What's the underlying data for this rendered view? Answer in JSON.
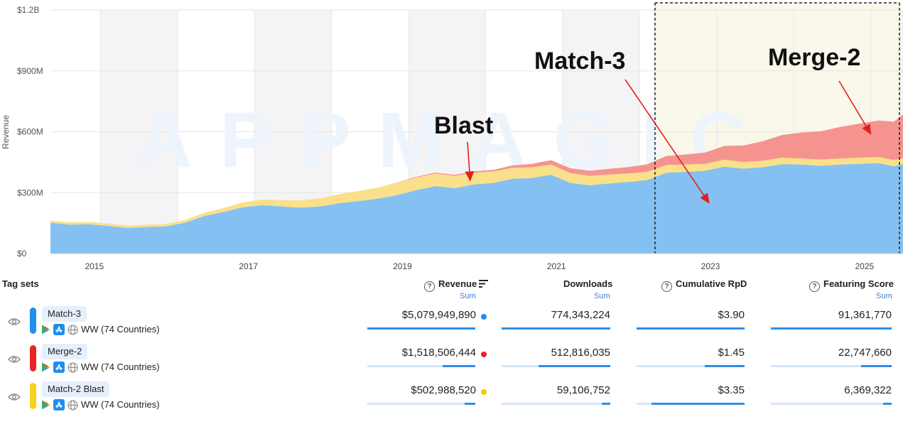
{
  "chart_data": {
    "type": "area",
    "ylabel": "Revenue",
    "ylim": [
      0,
      1200
    ],
    "y_tick_labels": [
      "$0",
      "$300M",
      "$600M",
      "$900M",
      "$1.2B"
    ],
    "y_ticks": [
      0,
      300,
      600,
      900,
      1200
    ],
    "x_range": [
      2014.35,
      2025.42
    ],
    "x_tick_labels": [
      "2015",
      "2017",
      "2019",
      "2021",
      "2023",
      "2025"
    ],
    "x_ticks": [
      2015,
      2017,
      2019,
      2021,
      2023,
      2025
    ],
    "highlight_from": 2022.2,
    "annotations": [
      {
        "text": "Blast",
        "target_x": 2019.8,
        "target_y": 360
      },
      {
        "text": "Match-3",
        "target_x": 2022.9,
        "target_y": 250
      },
      {
        "text": "Merge-2",
        "target_x": 2025.0,
        "target_y": 590
      }
    ],
    "x": [
      2014.35,
      2014.6,
      2014.85,
      2015.1,
      2015.35,
      2015.6,
      2015.85,
      2016.1,
      2016.35,
      2016.6,
      2016.85,
      2017.1,
      2017.35,
      2017.6,
      2017.85,
      2018.1,
      2018.35,
      2018.6,
      2018.85,
      2019.1,
      2019.35,
      2019.6,
      2019.85,
      2020.1,
      2020.35,
      2020.6,
      2020.85,
      2021.1,
      2021.35,
      2021.6,
      2021.85,
      2022.1,
      2022.35,
      2022.6,
      2022.85,
      2023.1,
      2023.35,
      2023.6,
      2023.85,
      2024.1,
      2024.35,
      2024.6,
      2024.85,
      2025.1,
      2025.3,
      2025.42
    ],
    "series": [
      {
        "name": "Match-3",
        "color": "#84c1f2",
        "values": [
          152,
          142,
          144,
          136,
          126,
          130,
          134,
          152,
          185,
          205,
          228,
          238,
          232,
          226,
          232,
          248,
          258,
          270,
          288,
          312,
          332,
          322,
          340,
          348,
          368,
          372,
          388,
          348,
          336,
          345,
          352,
          362,
          398,
          402,
          408,
          428,
          418,
          425,
          440,
          438,
          432,
          438,
          442,
          445,
          430,
          440
        ]
      },
      {
        "name": "Merge-2",
        "color": "#f5948e",
        "values": [
          0,
          0,
          0,
          0,
          0,
          0,
          0,
          0,
          0,
          0,
          0,
          0,
          0,
          0,
          0,
          0,
          0,
          0,
          2,
          4,
          5,
          6,
          7,
          8,
          12,
          18,
          22,
          24,
          26,
          28,
          32,
          38,
          45,
          50,
          56,
          68,
          82,
          96,
          112,
          128,
          140,
          155,
          168,
          180,
          190,
          215
        ]
      },
      {
        "name": "Match-2 Blast",
        "color": "#fbe08a",
        "values": [
          10,
          12,
          12,
          12,
          12,
          12,
          12,
          14,
          16,
          20,
          24,
          28,
          32,
          36,
          40,
          45,
          50,
          55,
          60,
          62,
          62,
          60,
          58,
          56,
          54,
          52,
          50,
          48,
          46,
          44,
          42,
          40,
          38,
          36,
          34,
          34,
          32,
          32,
          32,
          30,
          30,
          30,
          30,
          30,
          30,
          30
        ]
      }
    ]
  },
  "table": {
    "tag_sets_label": "Tag sets",
    "columns": [
      {
        "label": "Revenue",
        "sublabel": "Sum",
        "help": "?"
      },
      {
        "label": "Downloads",
        "sublabel": "Sum"
      },
      {
        "label": "Cumulative RpD",
        "help": "?"
      },
      {
        "label": "Featuring Score",
        "sublabel": "Sum",
        "help": "?"
      }
    ],
    "rows": [
      {
        "name": "Match-3",
        "region": "WW (74 Countries)",
        "color": "#1f8ef0",
        "dot": "#1f8ef0",
        "revenue": "$5,079,949,890",
        "downloads": "774,343,224",
        "rpd": "$3.90",
        "featuring": "91,361,770",
        "share": [
          1.0,
          1.0,
          1.0,
          1.0
        ]
      },
      {
        "name": "Merge-2",
        "region": "WW (74 Countries)",
        "color": "#e82525",
        "dot": "#e82525",
        "revenue": "$1,518,506,444",
        "downloads": "512,816,035",
        "rpd": "$1.45",
        "featuring": "22,747,660",
        "share": [
          0.3,
          0.66,
          0.37,
          0.25
        ]
      },
      {
        "name": "Match-2 Blast",
        "region": "WW (74 Countries)",
        "color": "#f7d21b",
        "dot": "#f7c800",
        "revenue": "$502,988,520",
        "downloads": "59,106,752",
        "rpd": "$3.35",
        "featuring": "6,369,322",
        "share": [
          0.1,
          0.08,
          0.86,
          0.07
        ]
      }
    ]
  }
}
